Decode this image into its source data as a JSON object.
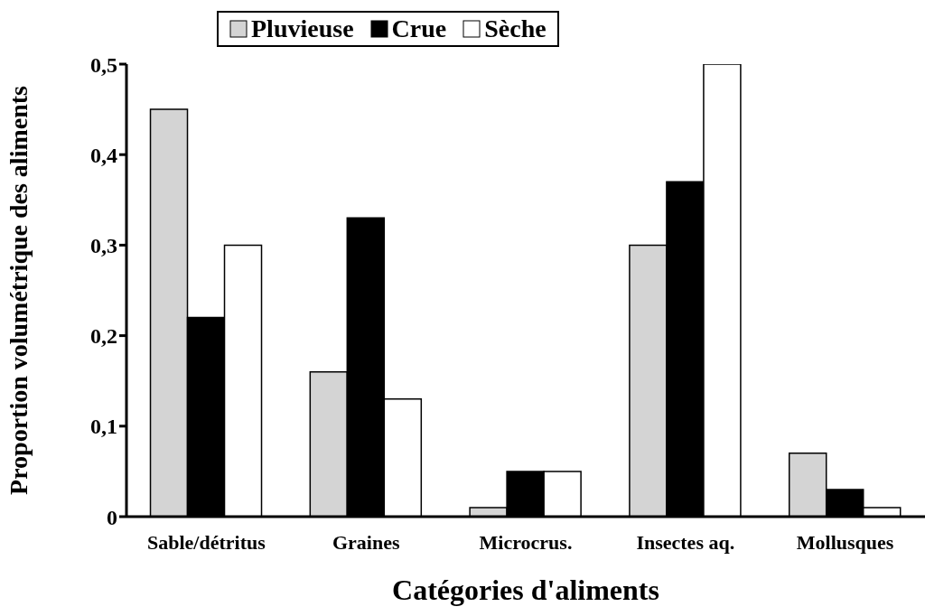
{
  "chart_data": {
    "type": "bar",
    "xlabel": "Catégories d'aliments",
    "ylabel": "Proportion volumétrique des aliments",
    "categories": [
      "Sable/détritus",
      "Graines",
      "Microcrus.",
      "Insectes aq.",
      "Mollusques"
    ],
    "series": [
      {
        "name": "Pluvieuse",
        "color": "#d4d4d4",
        "values": [
          0.45,
          0.16,
          0.01,
          0.3,
          0.07
        ]
      },
      {
        "name": "Crue",
        "color": "#000000",
        "values": [
          0.22,
          0.33,
          0.05,
          0.37,
          0.03
        ]
      },
      {
        "name": "Sèche",
        "color": "#ffffff",
        "values": [
          0.3,
          0.13,
          0.05,
          0.5,
          0.01
        ]
      }
    ],
    "ylim": [
      0,
      0.5
    ],
    "yticks": [
      {
        "value": 0,
        "label": "0"
      },
      {
        "value": 0.1,
        "label": "0,1"
      },
      {
        "value": 0.2,
        "label": "0,2"
      },
      {
        "value": 0.3,
        "label": "0,3"
      },
      {
        "value": 0.4,
        "label": "0,4"
      },
      {
        "value": 0.5,
        "label": "0,5"
      }
    ],
    "grid": false,
    "legend": "top"
  }
}
